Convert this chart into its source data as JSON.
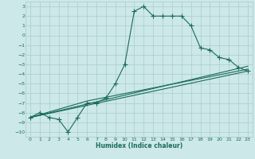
{
  "xlabel": "Humidex (Indice chaleur)",
  "bg_color": "#cce8e8",
  "grid_color": "#aacccc",
  "line_color": "#1a6b5a",
  "xlim": [
    -0.5,
    23.5
  ],
  "ylim": [
    -10.5,
    3.5
  ],
  "xticks": [
    0,
    1,
    2,
    3,
    4,
    5,
    6,
    7,
    8,
    9,
    10,
    11,
    12,
    13,
    14,
    15,
    16,
    17,
    18,
    19,
    20,
    21,
    22,
    23
  ],
  "yticks": [
    3,
    2,
    1,
    0,
    -1,
    -2,
    -3,
    -4,
    -5,
    -6,
    -7,
    -8,
    -9,
    -10
  ],
  "line1_x": [
    0,
    1,
    2,
    3,
    4,
    5,
    6,
    7,
    8,
    9,
    10,
    11,
    12,
    13,
    14,
    15,
    16,
    17,
    18,
    19,
    20,
    21,
    22,
    23
  ],
  "line1_y": [
    -8.5,
    -8.0,
    -8.5,
    -8.7,
    -10.0,
    -8.5,
    -7.0,
    -7.0,
    -6.5,
    -5.0,
    -3.0,
    2.5,
    3.0,
    2.0,
    2.0,
    2.0,
    2.0,
    1.0,
    -1.3,
    -1.5,
    -2.3,
    -2.5,
    -3.3,
    -3.7
  ],
  "line2_x": [
    0,
    23
  ],
  "line2_y": [
    -8.5,
    -3.7
  ],
  "line3_x": [
    0,
    23
  ],
  "line3_y": [
    -8.5,
    -3.2
  ],
  "line4_x": [
    0,
    6,
    23
  ],
  "line4_y": [
    -8.5,
    -6.8,
    -3.5
  ],
  "marker_style": "+",
  "marker_size": 4,
  "line_width": 0.8,
  "tick_fontsize": 4.5,
  "xlabel_fontsize": 5.5
}
